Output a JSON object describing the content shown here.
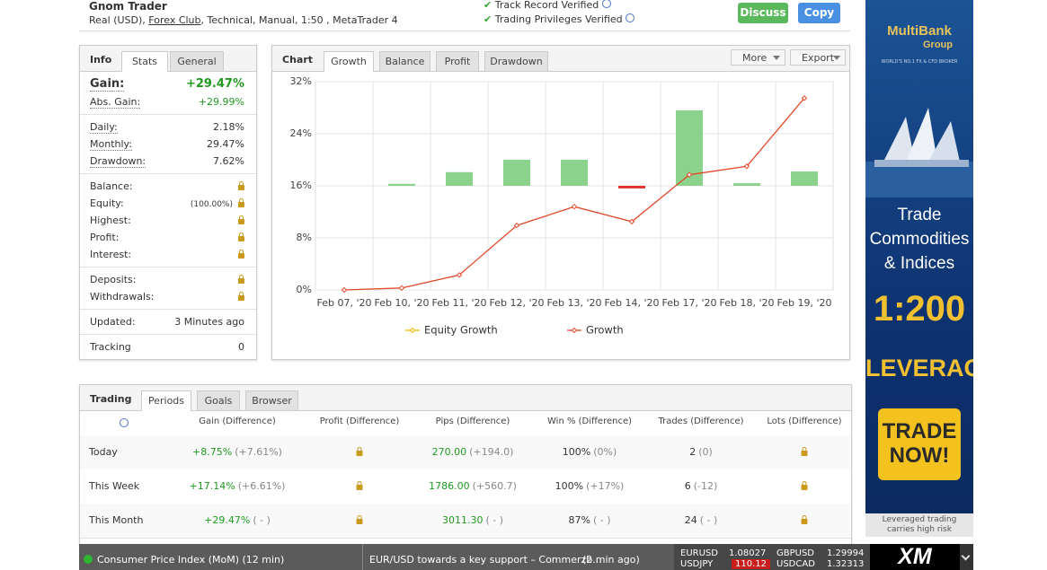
{
  "header": {
    "title": "Gnom Trader",
    "subtitle_pre": "Real (USD),",
    "broker": "Forex Club",
    "subtitle_post": ", Technical, Manual, 1:50 , MetaTrader 4",
    "verified": [
      "Track Record Verified",
      "Trading Privileges Verified"
    ],
    "buttons": [
      "Discuss",
      "Copy"
    ]
  },
  "info": {
    "tabs": [
      "Info",
      "Stats",
      "General"
    ],
    "groups": [
      [
        {
          "label": "Gain:",
          "value": "+29.47%"
        },
        {
          "label": "Abs. Gain:",
          "value": "+29.99%"
        }
      ],
      [
        {
          "label": "Daily:",
          "value": "2.18%"
        },
        {
          "label": "Monthly:",
          "value": "29.47%"
        },
        {
          "label": "Drawdown:",
          "value": "7.62%"
        }
      ],
      [
        {
          "label": "Balance:",
          "locked": true
        },
        {
          "label": "Equity:",
          "value": "(100.00%)",
          "locked": true
        },
        {
          "label": "Highest:",
          "locked": true
        },
        {
          "label": "Profit:",
          "locked": true
        },
        {
          "label": "Interest:",
          "locked": true
        }
      ],
      [
        {
          "label": "Deposits:",
          "locked": true
        },
        {
          "label": "Withdrawals:",
          "locked": true
        }
      ],
      [
        {
          "label": "Updated:",
          "value": "3 Minutes ago"
        }
      ],
      [
        {
          "label": "Tracking",
          "value": "0"
        }
      ]
    ]
  },
  "chart_panel": {
    "tabs": [
      "Chart",
      "Growth",
      "Balance",
      "Profit",
      "Drawdown"
    ],
    "buttons": [
      "More",
      "Export"
    ]
  },
  "chart_data": {
    "type": "combo",
    "categories": [
      "Feb 07, '20",
      "Feb 10, '20",
      "Feb 11, '20",
      "Feb 12, '20",
      "Feb 13, '20",
      "Feb 14, '20",
      "Feb 17, '20",
      "Feb 18, '20",
      "Feb 19, '20"
    ],
    "series": [
      {
        "name": "Equity Growth",
        "color": "#f5b400",
        "values": [
          null,
          null,
          null,
          null,
          null,
          null,
          null,
          null,
          null
        ]
      },
      {
        "name": "Growth",
        "color": "#e2492a",
        "values": [
          0,
          0.3,
          2.3,
          9.9,
          12.8,
          10.5,
          17.7,
          19.0,
          29.47
        ]
      }
    ],
    "bars": {
      "base": 16,
      "color": "#8bd38d",
      "negative_color": "#e23232",
      "values": [
        null,
        16.3,
        18.1,
        20.0,
        20.0,
        15.6,
        27.6,
        16.4,
        18.2
      ]
    },
    "ylim": [
      0,
      32
    ],
    "yticks": [
      {
        "value": 0,
        "label": "0%"
      },
      {
        "value": 8,
        "label": "8%"
      },
      {
        "value": 16,
        "label": "16%"
      },
      {
        "value": 24,
        "label": "24%"
      },
      {
        "value": 32,
        "label": "32%"
      }
    ],
    "grid": true
  },
  "trading": {
    "tabs": [
      "Trading",
      "Periods",
      "Goals",
      "Browser"
    ],
    "columns": [
      "Gain (Difference)",
      "Profit (Difference)",
      "Pips (Difference)",
      "Win % (Difference)",
      "Trades (Difference)",
      "Lots (Difference)"
    ],
    "rows": [
      {
        "label": "Today",
        "cells": [
          [
            "+8.75%",
            "(+7.61%)"
          ],
          null,
          [
            "270.00",
            "(+194.0)"
          ],
          [
            "100%",
            "(0%)"
          ],
          [
            "2",
            "(0)"
          ],
          null
        ]
      },
      {
        "label": "This Week",
        "cells": [
          [
            "+17.14%",
            "(+6.61%)"
          ],
          null,
          [
            "1786.00",
            "(+560.7)"
          ],
          [
            "100%",
            "(+17%)"
          ],
          [
            "6",
            "(-12)"
          ],
          null
        ]
      },
      {
        "label": "This Month",
        "cells": [
          [
            "+29.47%",
            "( - )"
          ],
          null,
          [
            "3011.30",
            "( - )"
          ],
          [
            "87%",
            "( - )"
          ],
          [
            "24",
            "( - )"
          ],
          null
        ]
      }
    ]
  },
  "ad": {
    "brand": "MultiBank",
    "group": "Group",
    "tagline": "WORLD'S NO.1 FX & CFD BROKER",
    "headline": [
      "Trade",
      "Commodities",
      "& Indices"
    ],
    "ratio": "1:200",
    "leverage": "LEVERAGE",
    "cta": [
      "TRADE",
      "NOW!"
    ],
    "disclaimer": [
      "Leveraged trading",
      "carries high risk"
    ]
  },
  "ticker": {
    "news": [
      {
        "text": "Consumer Price Index (MoM) (12 min)"
      },
      {
        "text": "EUR/USD towards a key support – Commerzb...",
        "time": "(2 min ago)"
      }
    ],
    "quotes": [
      {
        "symbol": "EURUSD",
        "price": "1.08027"
      },
      {
        "symbol": "GBPUSD",
        "price": "1.29994"
      },
      {
        "symbol": "USDJPY",
        "price": "110.12"
      },
      {
        "symbol": "USDCAD",
        "price": "1.32313"
      }
    ],
    "logo": "XM"
  }
}
